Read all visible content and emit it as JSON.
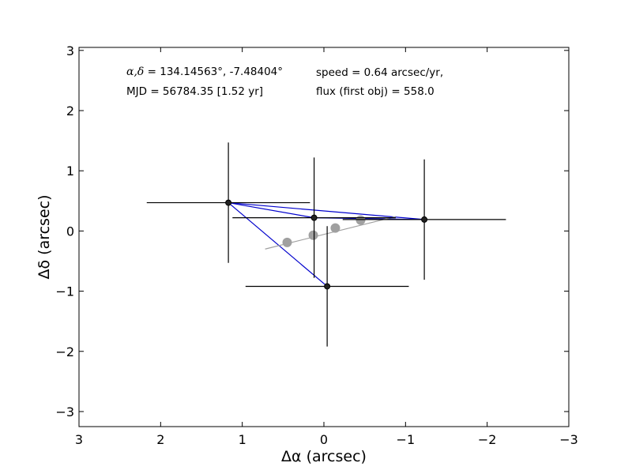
{
  "chart_data": {
    "type": "scatter",
    "xlabel": "Δα (arcsec)",
    "ylabel": "Δδ (arcsec)",
    "xlim": [
      3,
      -3
    ],
    "ylim": [
      -3.25,
      3.05
    ],
    "xticks": [
      3,
      2,
      1,
      0,
      -1,
      -2,
      -3
    ],
    "xtick_labels": [
      "3",
      "2",
      "1",
      "0",
      "−1",
      "−2",
      "−3"
    ],
    "yticks": [
      3,
      2,
      1,
      0,
      -1,
      -2,
      -3
    ],
    "ytick_labels": [
      "3",
      "2",
      "1",
      "0",
      "−1",
      "−2",
      "−3"
    ],
    "grid": false,
    "annotations": {
      "coord_symbols": "α,δ",
      "coord_value": " = 134.14563°, -7.48404°",
      "mjd": "MJD = 56784.35 [1.52 yr]",
      "speed": "speed = 0.64 arcsec/yr,",
      "flux": "flux (first obj) = 558.0"
    },
    "detections": [
      {
        "x": 1.17,
        "y": 0.47,
        "xerr": 1.0,
        "yerr": 1.0
      },
      {
        "x": 0.12,
        "y": 0.22,
        "xerr": 1.0,
        "yerr": 1.0
      },
      {
        "x": -1.23,
        "y": 0.19,
        "xerr": 1.0,
        "yerr": 1.0
      },
      {
        "x": -0.04,
        "y": -0.92,
        "xerr": 1.0,
        "yerr": 1.0
      }
    ],
    "connections": [
      [
        0,
        1
      ],
      [
        1,
        2
      ],
      [
        2,
        0
      ],
      [
        0,
        3
      ]
    ],
    "fit_points": [
      {
        "x": 0.45,
        "y": -0.19
      },
      {
        "x": 0.13,
        "y": -0.07
      },
      {
        "x": -0.14,
        "y": 0.05
      },
      {
        "x": -0.45,
        "y": 0.18
      }
    ],
    "fit_line": [
      [
        0.72,
        -0.3
      ],
      [
        -0.88,
        0.24
      ]
    ],
    "colors": {
      "detections": "#000000",
      "connections": "#0000cc",
      "fit": "#a0a0a0",
      "axes": "#000000"
    }
  }
}
